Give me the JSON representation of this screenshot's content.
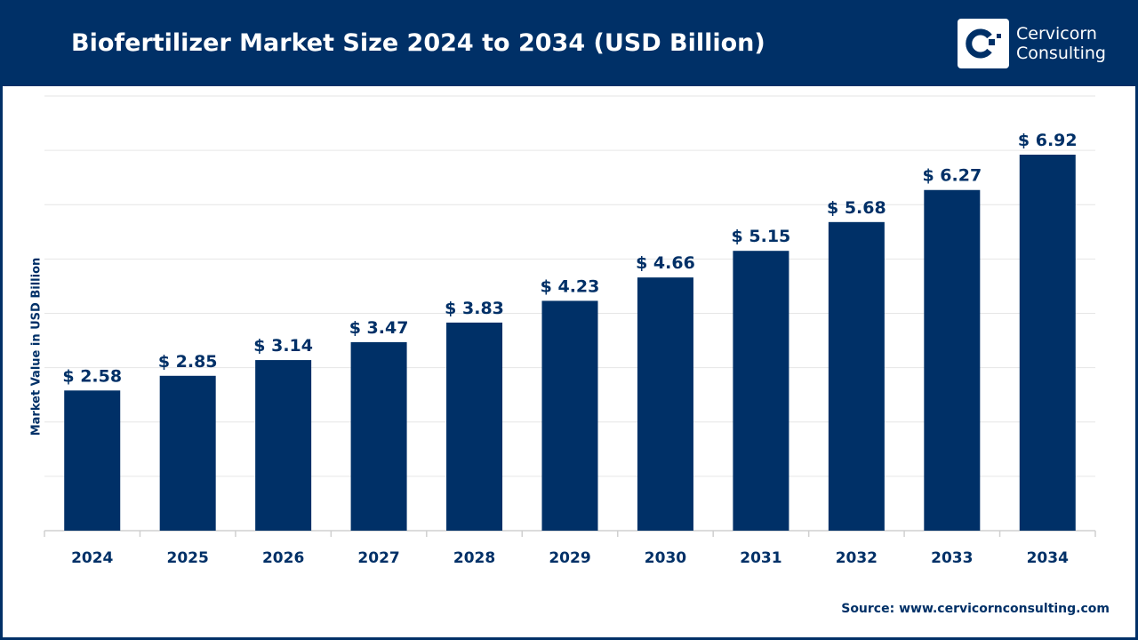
{
  "header": {
    "title": "Biofertilizer Market Size 2024 to 2034 (USD Billion)",
    "logo_line1": "Cervicorn",
    "logo_line2": "Consulting"
  },
  "source": "Source: www.cervicornconsulting.com",
  "chart_data": {
    "type": "bar",
    "title": "Biofertilizer Market Size 2024 to 2034 (USD Billion)",
    "ylabel": "Market Value in USD Billion",
    "xlabel": "",
    "categories": [
      "2024",
      "2025",
      "2026",
      "2027",
      "2028",
      "2029",
      "2030",
      "2031",
      "2032",
      "2033",
      "2034"
    ],
    "values": [
      2.58,
      2.85,
      3.14,
      3.47,
      3.83,
      4.23,
      4.66,
      5.15,
      5.68,
      6.27,
      6.92
    ],
    "data_labels": [
      "$ 2.58",
      "$ 2.85",
      "$ 3.14",
      "$ 3.47",
      "$ 3.83",
      "$ 4.23",
      "$ 4.66",
      "$ 5.15",
      "$ 5.68",
      "$ 6.27",
      "$ 6.92"
    ],
    "ylim": [
      0,
      8
    ],
    "grid": true,
    "colors": {
      "bar": "#003067",
      "grid": "#e6e6e6",
      "header": "#003067"
    }
  }
}
